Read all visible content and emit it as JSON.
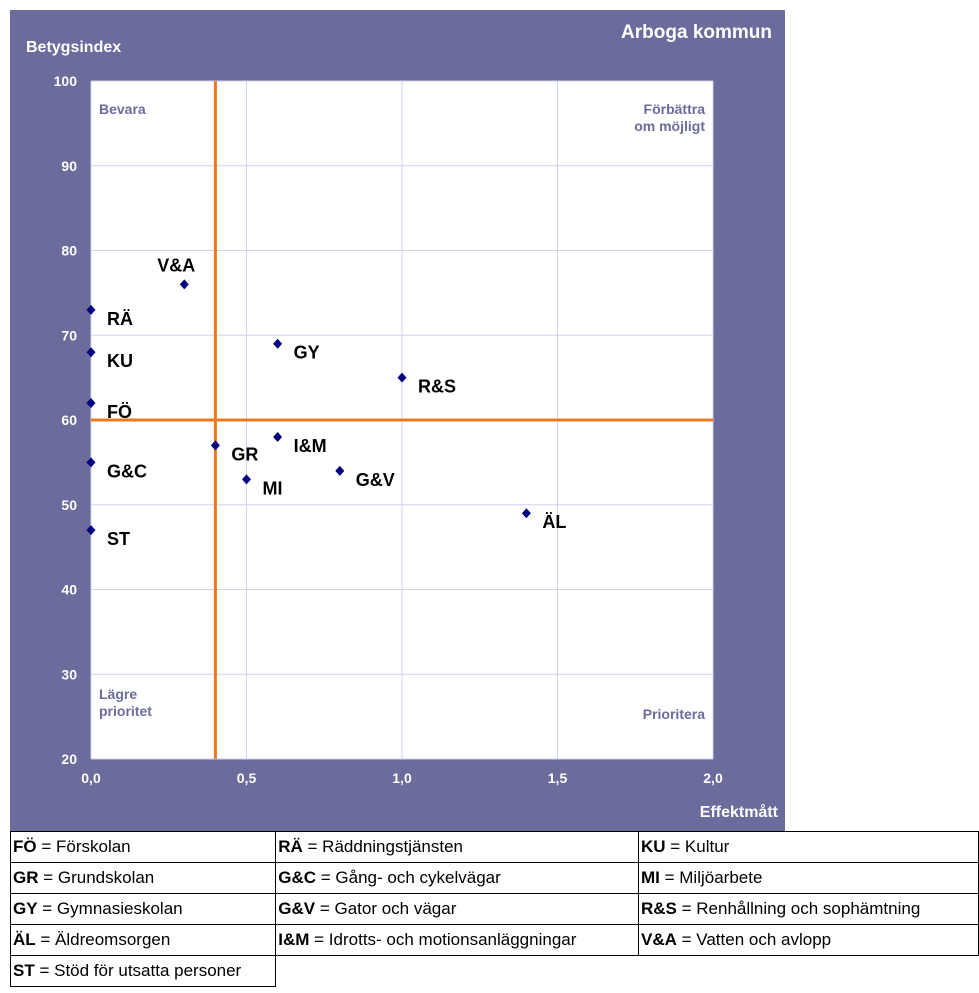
{
  "chart_data": {
    "type": "scatter",
    "title": "Arboga kommun",
    "xlabel": "Effektmått",
    "ylabel": "Betygsindex",
    "xlim": [
      0,
      2
    ],
    "ylim": [
      20,
      100
    ],
    "x_ticks": [
      "0,0",
      "0,5",
      "1,0",
      "1,5",
      "2,0"
    ],
    "y_ticks": [
      "20",
      "30",
      "40",
      "50",
      "60",
      "70",
      "80",
      "90",
      "100"
    ],
    "grid": true,
    "colors": {
      "background": "#6b6b9c",
      "plot": "#ffffff",
      "marker": "#000080",
      "reference": "#f07820",
      "quadrant_text": "#6b6b9c",
      "grid": "#cfd3ee"
    },
    "reference_lines": {
      "x": 0.4,
      "y": 60
    },
    "quadrants": [
      {
        "id": "top-left",
        "text": [
          "Bevara"
        ]
      },
      {
        "id": "top-right",
        "text": [
          "Förbättra",
          "om möjligt"
        ]
      },
      {
        "id": "bottom-left",
        "text": [
          "Lägre",
          "prioritet"
        ]
      },
      {
        "id": "bottom-right",
        "text": [
          "Prioritera"
        ]
      }
    ],
    "points": [
      {
        "label": "V&A",
        "x": 0.3,
        "y": 76,
        "label_pos": "above"
      },
      {
        "label": "RÄ",
        "x": 0.0,
        "y": 73,
        "label_pos": "right"
      },
      {
        "label": "KU",
        "x": 0.0,
        "y": 68,
        "label_pos": "right"
      },
      {
        "label": "FÖ",
        "x": 0.0,
        "y": 62,
        "label_pos": "right"
      },
      {
        "label": "G&C",
        "x": 0.0,
        "y": 55,
        "label_pos": "right"
      },
      {
        "label": "ST",
        "x": 0.0,
        "y": 47,
        "label_pos": "right"
      },
      {
        "label": "GY",
        "x": 0.6,
        "y": 69,
        "label_pos": "right"
      },
      {
        "label": "R&S",
        "x": 1.0,
        "y": 65,
        "label_pos": "right"
      },
      {
        "label": "GR",
        "x": 0.4,
        "y": 57,
        "label_pos": "right"
      },
      {
        "label": "I&M",
        "x": 0.6,
        "y": 58,
        "label_pos": "right"
      },
      {
        "label": "MI",
        "x": 0.5,
        "y": 53,
        "label_pos": "right"
      },
      {
        "label": "G&V",
        "x": 0.8,
        "y": 54,
        "label_pos": "right"
      },
      {
        "label": "ÄL",
        "x": 1.4,
        "y": 49,
        "label_pos": "right"
      }
    ]
  },
  "legend": [
    [
      {
        "abbr": "FÖ",
        "text": " = Förskolan"
      },
      {
        "abbr": "RÄ",
        "text": " = Räddningstjänsten"
      },
      {
        "abbr": "KU",
        "text": " = Kultur"
      }
    ],
    [
      {
        "abbr": "GR",
        "text": " = Grundskolan"
      },
      {
        "abbr": "G&C",
        "text": " = Gång- och cykelvägar"
      },
      {
        "abbr": "MI",
        "text": " = Miljöarbete"
      }
    ],
    [
      {
        "abbr": "GY",
        "text": " = Gymnasieskolan"
      },
      {
        "abbr": "G&V",
        "text": " = Gator och vägar"
      },
      {
        "abbr": "R&S",
        "text": " = Renhållning och sophämtning"
      }
    ],
    [
      {
        "abbr": "ÄL",
        "text": " = Äldreomsorgen"
      },
      {
        "abbr": "I&M",
        "text": " = Idrotts- och motionsanläggningar"
      },
      {
        "abbr": "V&A",
        "text": " = Vatten och avlopp"
      }
    ],
    [
      {
        "abbr": "ST",
        "text": " = Stöd för utsatta personer"
      }
    ]
  ]
}
